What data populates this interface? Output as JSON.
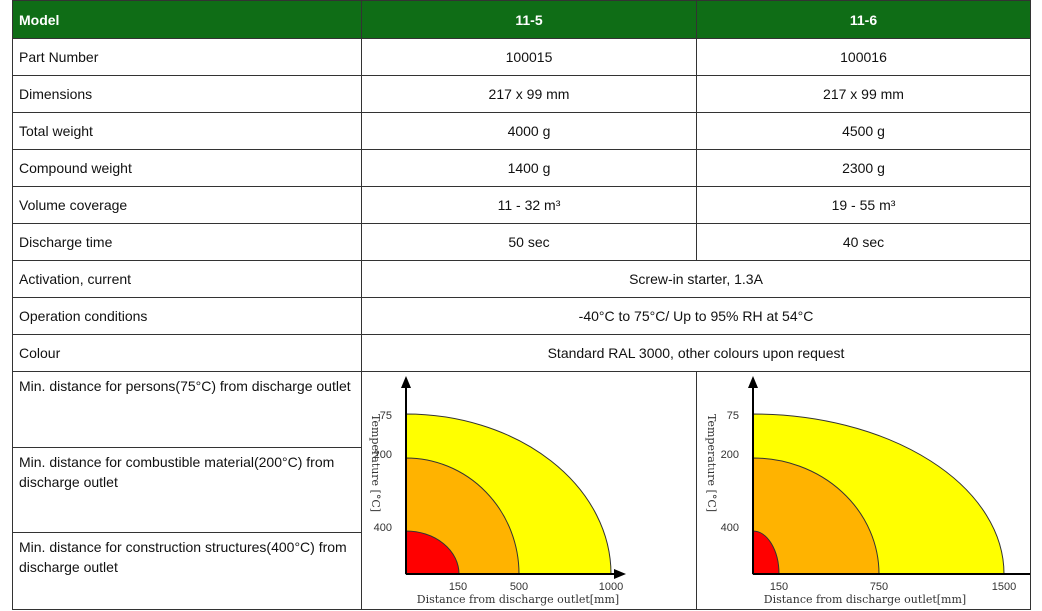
{
  "table": {
    "header": [
      "Model",
      "11-5",
      "11-6"
    ],
    "rows": [
      [
        "Part Number",
        "100015",
        "100016"
      ],
      [
        "Dimensions",
        "217 x 99 mm",
        "217 x 99 mm"
      ],
      [
        "Total weight",
        "4000 g",
        "4500 g"
      ],
      [
        "Compound weight",
        "1400 g",
        "2300 g"
      ],
      [
        "Volume coverage",
        "11 - 32 m³",
        "19 - 55 m³"
      ],
      [
        "Discharge time",
        "50 sec",
        "40 sec"
      ],
      [
        "Activation, current",
        "Screw-in starter, 1.3A"
      ],
      [
        "Operation conditions",
        "-40°C to 75°C/ Up to 95% RH at 54°C"
      ],
      [
        "Colour",
        "Standard RAL 3000, other colours upon request"
      ]
    ],
    "distance_rows": [
      "Min. distance for persons(75°C) from discharge outlet",
      "Min. distance for combustible material(200°C) from discharge outlet",
      "Min. distance for construction structures(400°C) from discharge outlet"
    ],
    "diagrams": [
      {
        "y_label": "Temperature [°C]",
        "x_label": "Distance from discharge outlet[mm]",
        "yticks": [
          "75",
          "200",
          "400"
        ],
        "xticks": [
          "150",
          "500",
          "1000"
        ]
      },
      {
        "y_label": "Temperature [°C]",
        "x_label": "Distance from discharge outlet[mm]",
        "yticks": [
          "75",
          "200",
          "400"
        ],
        "xticks": [
          "150",
          "750",
          "1500"
        ]
      }
    ]
  }
}
